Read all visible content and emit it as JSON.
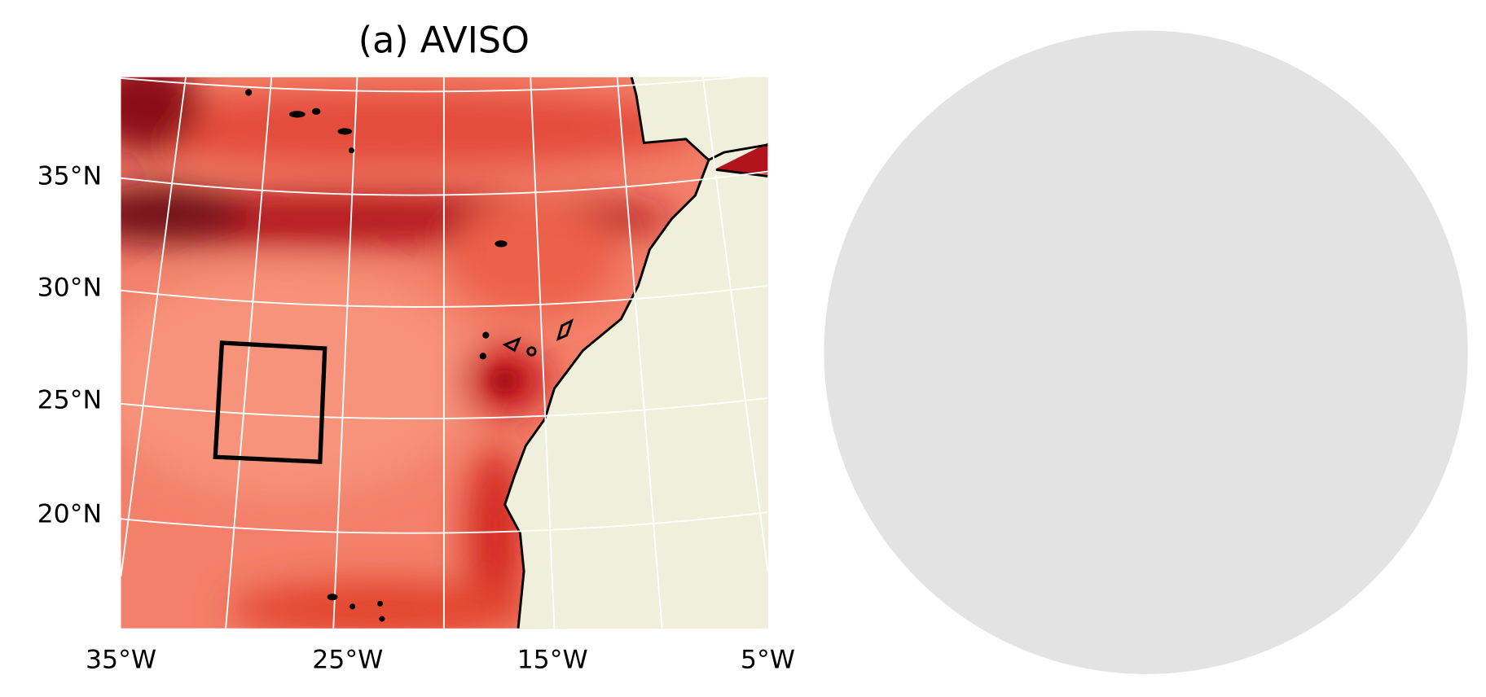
{
  "panels": [
    {
      "title": "(a) AVISO",
      "lat_labels": [
        "35°N",
        "30°N",
        "25°N",
        "20°N"
      ],
      "lon_labels": [
        "35°W",
        "25°W",
        "15°W",
        "5°W"
      ]
    }
  ]
}
